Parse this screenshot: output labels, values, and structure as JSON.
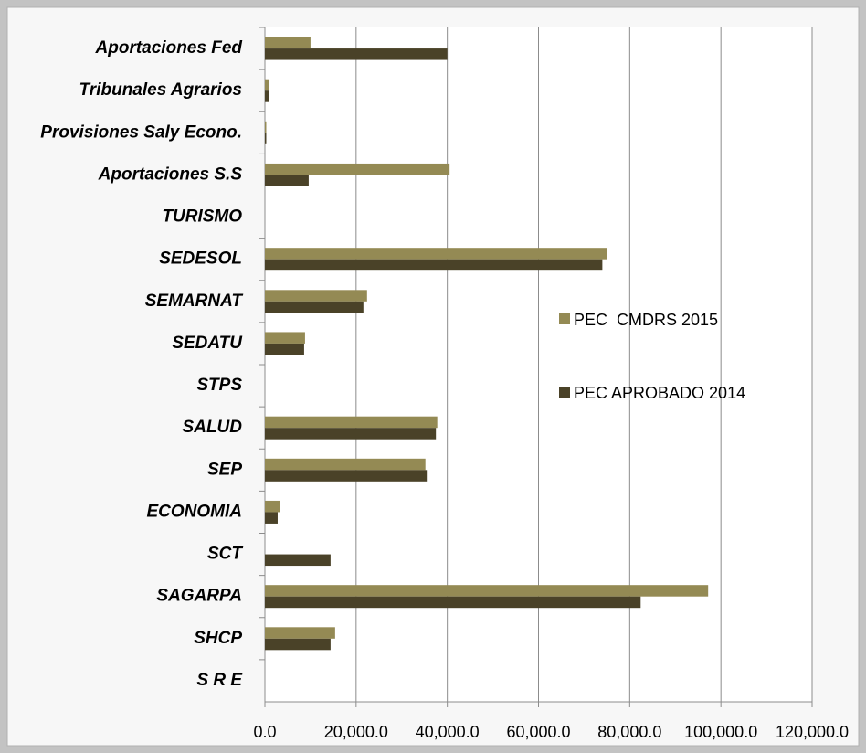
{
  "chart_data": {
    "type": "bar",
    "orientation": "horizontal",
    "categories": [
      "Aportaciones Fed",
      "Tribunales Agrarios",
      "Provisiones Saly Econo.",
      "Aportaciones S.S",
      "TURISMO",
      "SEDESOL",
      "SEMARNAT",
      "SEDATU",
      "STPS",
      "SALUD",
      "SEP",
      "ECONOMIA",
      "SCT",
      "SAGARPA",
      "SHCP",
      "S R E"
    ],
    "series": [
      {
        "name": "PEC  CMDRS 2015",
        "color": "#948a54",
        "values": [
          10000,
          1000,
          300,
          40500,
          0,
          75000,
          22400,
          8800,
          0,
          37800,
          35200,
          3400,
          0,
          97200,
          15400,
          0
        ]
      },
      {
        "name": "PEC APROBADO 2014",
        "color": "#4a4228",
        "values": [
          40000,
          1000,
          300,
          9600,
          0,
          74000,
          21600,
          8600,
          0,
          37500,
          35500,
          2800,
          14400,
          82400,
          14400,
          0
        ]
      }
    ],
    "xlim": [
      0,
      120000
    ],
    "xticks": [
      {
        "value": 0,
        "label": "0.0"
      },
      {
        "value": 20000,
        "label": "20,000.0"
      },
      {
        "value": 40000,
        "label": "40,000.0"
      },
      {
        "value": 60000,
        "label": "60,000.0"
      },
      {
        "value": 80000,
        "label": "80,000.0"
      },
      {
        "value": 100000,
        "label": "100,000.0"
      },
      {
        "value": 120000,
        "label": "120,000.0"
      }
    ],
    "grid": true,
    "legend": "right"
  }
}
